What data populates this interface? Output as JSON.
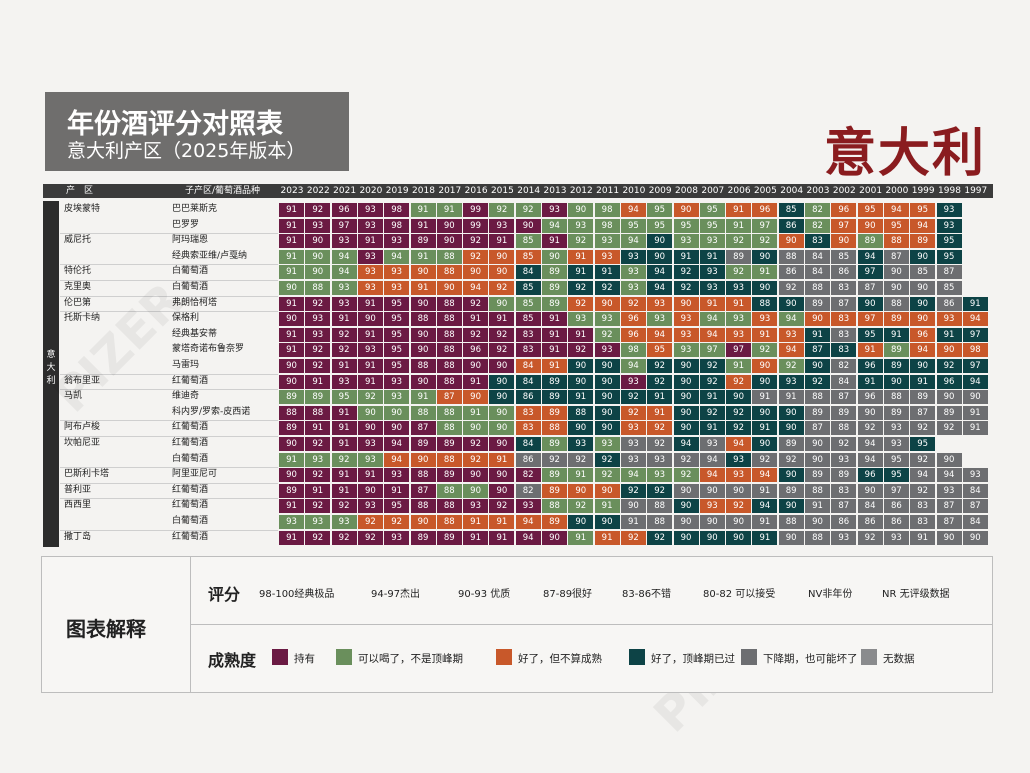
{
  "header": {
    "title": "年份酒评分对照表",
    "subtitle": "意大利产区（2025年版本）",
    "country": "意大利",
    "col_region": "产　区",
    "col_subregion": "子产区/葡萄酒品种",
    "side_label": "意大利"
  },
  "chart_data": {
    "type": "table",
    "years": [
      2023,
      2022,
      2021,
      2020,
      2019,
      2018,
      2017,
      2016,
      2015,
      2014,
      2013,
      2012,
      2011,
      2010,
      2009,
      2008,
      2007,
      2006,
      2005,
      2004,
      2003,
      2002,
      2001,
      2000,
      1999,
      1998,
      1997
    ],
    "rows": [
      {
        "region": "皮埃蒙特",
        "sub": "巴巴莱斯克",
        "s": "91,92,96,93,98,91,91,99,92,92,93,90,98,94,95,90,95,91,96,85,82,96,95,94,95,93",
        "m": "HHHHHDDHDDHDDRDRDRRPDRRRRP"
      },
      {
        "region": "",
        "sub": "巴罗罗",
        "s": "91,93,97,93,98,91,90,99,93,90,94,93,98,95,95,95,95,91,97,86,82,97,90,95,94,93",
        "m": "HHHHHHHHHHDDDDDDDDDPDRRRRP"
      },
      {
        "region": "威尼托",
        "sub": "阿玛瑞恩",
        "s": "91,90,93,91,93,89,90,92,91,85,91,92,93,94,90,93,93,92,92,90,83,90,89,88,89,95",
        "m": "HHHHHHHHHDHDDDPDDDDRPRDRRP"
      },
      {
        "region": "",
        "sub": "经典索亚维/卢戛纳",
        "s": "91,90,94,93,94,91,88,92,90,85,90,91,93,93,90,91,91,89,90,88,84,85,94,87,90,95",
        "m": "DDDHDDDRRRDRRPPPPXPXXXPXPP"
      },
      {
        "region": "特伦托",
        "sub": "白葡萄酒",
        "s": "91,90,94,93,93,90,88,90,90,84,89,91,91,93,94,92,93,92,91,86,84,86,97,90,85,87",
        "m": "DDDRRRRRRPDPPDPPPDDXXXPXXX"
      },
      {
        "region": "克里奥",
        "sub": "白葡萄酒",
        "s": "90,88,93,93,93,91,90,94,92,85,89,92,92,93,94,92,93,93,90,92,88,83,87,90,90,85",
        "m": "DDDRRRRRRPDPPDPPPPPXXXXXXX"
      },
      {
        "region": "伦巴第",
        "sub": "弗朗恰柯塔",
        "s": "91,92,93,91,95,90,88,92,90,85,89,92,90,92,93,90,91,91,88,90,89,87,90,88,90,86,91",
        "m": "HHHHHHHHDDDRRRRRRRPPXXPXPXP"
      },
      {
        "region": "托斯卡纳",
        "sub": "保格利",
        "s": "90,93,91,90,95,88,88,91,91,85,91,93,93,96,93,93,94,93,93,94,90,83,97,89,90,93,94",
        "m": "HHHHHHHHHHHDDRDRDDRDRRRRRRR"
      },
      {
        "region": "",
        "sub": "经典基安蒂",
        "s": "91,93,92,91,95,90,88,92,92,83,91,91,92,96,94,93,94,93,91,93,91,83,95,91,96,91,97",
        "m": "HHHHHHHHHHHHDRRRRRRRPXPPRPP"
      },
      {
        "region": "",
        "sub": "蒙塔奇诺布鲁奈罗",
        "s": "91,92,92,93,95,90,88,96,92,83,91,92,93,98,95,93,97,97,92,94,87,83,91,89,94,90,98",
        "m": "HHHHHHHHHHHHHDRDDHDRPPRDRRR"
      },
      {
        "region": "",
        "sub": "马雷玛",
        "s": "90,92,91,91,95,88,88,90,90,84,91,90,90,94,92,90,92,91,90,92,90,82,96,89,90,92,97",
        "m": "HHHHHHHHHRRPPDPPPDRDPXPPPPP"
      },
      {
        "region": "翁布里亚",
        "sub": "红葡萄酒",
        "s": "90,91,93,91,93,90,88,91,90,84,89,90,90,93,92,90,92,92,90,93,92,84,91,90,91,96,94",
        "m": "HHHHHHHHPPPPPHPPPRPPPXPPPPP"
      },
      {
        "region": "马凯",
        "sub": "维迪奇",
        "s": "89,89,95,92,93,91,87,90,90,86,89,91,90,92,91,90,91,90,91,91,88,87,96,88,89,90,90",
        "m": "DDDDDDRRPPPPPPPPPPXXXXXXXXX"
      },
      {
        "region": "",
        "sub": "科内罗/罗索-皮西诺",
        "s": "88,88,91,90,90,88,88,91,90,83,89,88,90,92,91,90,92,92,90,90,89,89,90,89,87,89,91",
        "m": "HHHDDDDDDRRPPRRPPPPPXXXXXXX"
      },
      {
        "region": "阿布卢梭",
        "sub": "红葡萄酒",
        "s": "89,91,91,90,90,87,88,90,90,83,88,90,90,93,92,90,91,92,91,90,87,88,92,93,92,92,91",
        "m": "HHHHHHDDDRRPPRRPPPPPXXXXXXX"
      },
      {
        "region": "坎帕尼亚",
        "sub": "红葡萄酒",
        "s": "90,92,91,93,94,89,89,92,90,84,89,93,93,93,92,94,93,94,90,89,90,92,94,93,95",
        "m": "HHHHHHHHHPDPDXXPXRPXXXXXPP"
      },
      {
        "region": "",
        "sub": "白葡萄酒",
        "s": "91,93,92,93,94,90,88,92,91,86,92,92,92,93,93,92,94,93,92,92,90,93,94,95,92,90",
        "m": "DDDDRRRRRXXXPXXXXPXXXXXXXX"
      },
      {
        "region": "巴斯利卡塔",
        "sub": "阿里亚尼可",
        "s": "90,92,91,91,93,88,89,90,90,82,89,91,92,94,93,92,94,93,94,90,89,89,96,95,94,94,93",
        "m": "HHHHHHHHHHDDDDDDRRRPXXPPXXX"
      },
      {
        "region": "普利亚",
        "sub": "红葡萄酒",
        "s": "89,91,91,90,91,87,88,90,90,82,89,90,90,92,92,90,90,90,91,89,88,83,90,97,92,93,84",
        "m": "HHHHHHDDHXRRRPPXXXXXXXXXXXX"
      },
      {
        "region": "西西里",
        "sub": "红葡萄酒",
        "s": "91,92,92,93,95,88,88,93,92,93,88,92,91,90,88,90,93,92,94,90,91,87,84,86,83,87,87",
        "m": "HHHHHHHHHHDDDXXPRRPPXXXXXXX"
      },
      {
        "region": "",
        "sub": "白葡萄酒",
        "s": "93,93,93,92,92,90,88,91,91,94,89,90,90,91,88,90,90,90,91,88,90,86,86,86,83,87,84",
        "m": "DDDRRRRRRRRPPXXXXXXXXXXXXXX"
      },
      {
        "region": "撒丁岛",
        "sub": "红葡萄酒",
        "s": "91,92,92,92,93,89,89,91,91,94,90,91,91,92,92,90,90,90,91,90,88,93,92,93,91,90,90",
        "m": "HHHHHHHHHHHDRRPPPPPXXXXXXXX"
      }
    ]
  },
  "legend": {
    "title": "图表解释",
    "score_label": "评分",
    "maturity_label": "成熟度",
    "scores": [
      "98-100经典极品",
      "94-97杰出",
      "90-93 优质",
      "87-89很好",
      "83-86不错",
      "80-82 可以接受",
      "NV非年份",
      "NR 无评级数据"
    ],
    "maturity": [
      {
        "label": "持有",
        "color": "#6b1a43"
      },
      {
        "label": "可以喝了，不是顶峰期",
        "color": "#6a8f5c"
      },
      {
        "label": "好了，但不算成熟",
        "color": "#c8582a"
      },
      {
        "label": "好了，顶峰期已过",
        "color": "#0d4346"
      },
      {
        "label": "下降期，也可能坏了",
        "color": "#6d6e71"
      },
      {
        "label": "无数据",
        "color": "#8a8b8d"
      }
    ]
  },
  "watermark": "PIZER"
}
